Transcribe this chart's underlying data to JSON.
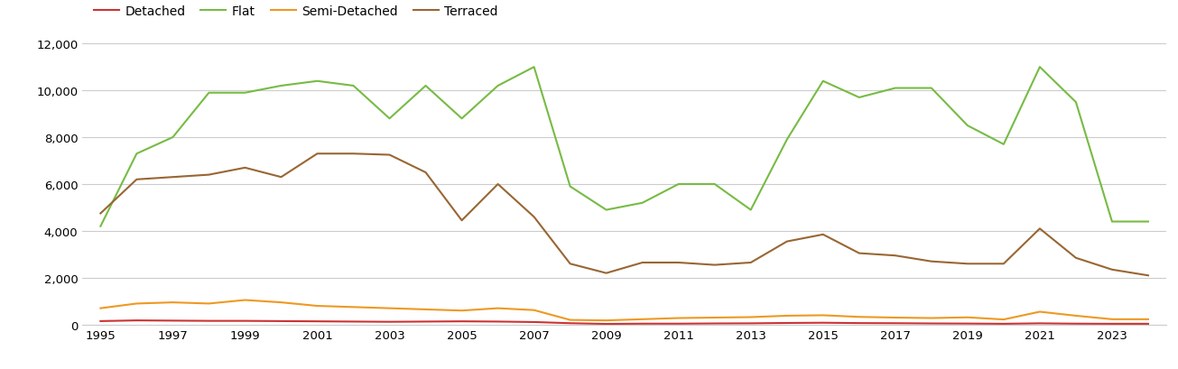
{
  "years": [
    1995,
    1996,
    1997,
    1998,
    1999,
    2000,
    2001,
    2002,
    2003,
    2004,
    2005,
    2006,
    2007,
    2008,
    2009,
    2010,
    2011,
    2012,
    2013,
    2014,
    2015,
    2016,
    2017,
    2018,
    2019,
    2020,
    2021,
    2022,
    2023,
    2024
  ],
  "detached": [
    150,
    180,
    170,
    160,
    160,
    150,
    140,
    130,
    120,
    130,
    140,
    130,
    110,
    60,
    30,
    40,
    40,
    50,
    55,
    70,
    80,
    65,
    60,
    50,
    45,
    35,
    55,
    40,
    35,
    35
  ],
  "flat": [
    4200,
    7300,
    8000,
    9900,
    9900,
    10200,
    10400,
    10200,
    8800,
    10200,
    8800,
    10200,
    11000,
    5900,
    4900,
    5200,
    6000,
    6000,
    4900,
    7900,
    10400,
    9700,
    10100,
    10100,
    8500,
    7700,
    11000,
    9500,
    4400,
    4400
  ],
  "semi_detached": [
    700,
    900,
    950,
    900,
    1050,
    950,
    800,
    750,
    700,
    650,
    600,
    700,
    620,
    200,
    180,
    230,
    280,
    300,
    320,
    380,
    400,
    330,
    300,
    280,
    310,
    220,
    550,
    380,
    230,
    230
  ],
  "terraced": [
    4750,
    6200,
    6300,
    6400,
    6700,
    6300,
    7300,
    7300,
    7250,
    6500,
    4450,
    6000,
    4600,
    2600,
    2200,
    2650,
    2650,
    2550,
    2650,
    3550,
    3850,
    3050,
    2950,
    2700,
    2600,
    2600,
    4100,
    2850,
    2350,
    2100
  ],
  "colors": {
    "detached": "#cc3333",
    "flat": "#77bb44",
    "semi_detached": "#ee9922",
    "terraced": "#996633"
  },
  "ylim": [
    0,
    12000
  ],
  "yticks": [
    0,
    2000,
    4000,
    6000,
    8000,
    10000,
    12000
  ],
  "xticks": [
    1995,
    1997,
    1999,
    2001,
    2003,
    2005,
    2007,
    2009,
    2011,
    2013,
    2015,
    2017,
    2019,
    2021,
    2023
  ],
  "xlim": [
    1994.5,
    2024.5
  ],
  "legend_labels": [
    "Detached",
    "Flat",
    "Semi-Detached",
    "Terraced"
  ],
  "background_color": "#ffffff",
  "grid_color": "#cccccc",
  "tick_fontsize": 9.5,
  "legend_fontsize": 10
}
